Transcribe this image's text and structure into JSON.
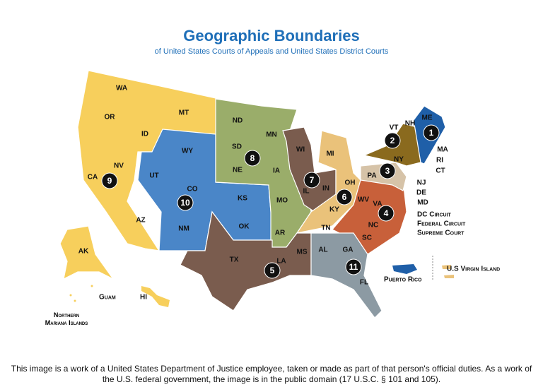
{
  "header": {
    "title": "Geographic Boundaries",
    "subtitle": "of United States Courts of Appeals and United States District Courts"
  },
  "states": [
    "WA",
    "OR",
    "CA",
    "NV",
    "ID",
    "MT",
    "AZ",
    "AK",
    "HI",
    "WY",
    "UT",
    "CO",
    "NM",
    "KS",
    "OK",
    "ND",
    "SD",
    "NE",
    "MN",
    "IA",
    "MO",
    "AR",
    "TX",
    "LA",
    "MS",
    "WI",
    "IL",
    "IN",
    "MI",
    "OH",
    "KY",
    "TN",
    "WV",
    "VA",
    "NC",
    "SC",
    "MD",
    "AL",
    "GA",
    "FL",
    "PA",
    "NJ",
    "DE",
    "NY",
    "VT",
    "CT",
    "NH",
    "ME",
    "MA",
    "RI"
  ],
  "circuits": [
    "1",
    "2",
    "3",
    "4",
    "5",
    "6",
    "7",
    "8",
    "9",
    "10",
    "11"
  ],
  "labels": {
    "dc_circuit": "DC Circuit",
    "federal_circuit": "Federal Circuit",
    "supreme_court": "Supreme Court",
    "puerto_rico": "Puerto Rico",
    "virgin_islands": "U.S Virgin Island",
    "guam": "Guam",
    "northern_mariana": "Northern Mariana Islands"
  },
  "caption": "This image is a work of a United States Department of Justice employee, taken or made as part of that person's official duties. As a work of the U.S. federal government, the image is in the public domain (17 U.S.C. § 101 and 105)."
}
